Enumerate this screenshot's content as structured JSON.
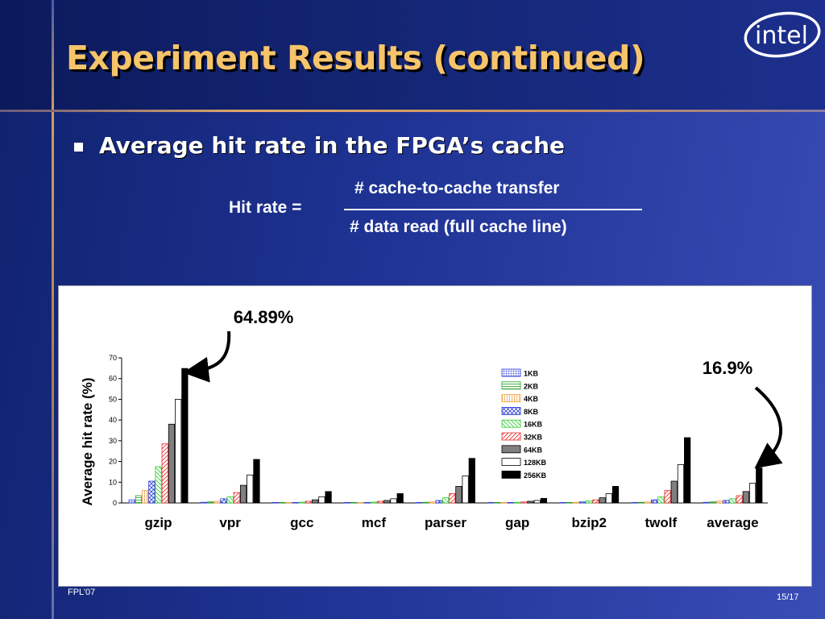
{
  "slide": {
    "title": "Experiment Results (continued)",
    "bullet": "Average hit rate in the FPGA’s cache",
    "formula": {
      "label": "Hit rate =",
      "numerator": "# cache-to-cache transfer",
      "denominator": "# data read (full cache line)"
    },
    "logo_text": "intel",
    "footer_left": "FPL’07",
    "page_number": "15/17"
  },
  "colors": {
    "title": "#f6c46a",
    "accent_line": "#e0a868",
    "background": "#1e3394"
  },
  "chart_data": {
    "type": "bar",
    "ylabel": "Average hit rate (%)",
    "xlabel": "",
    "ylim": [
      0,
      70
    ],
    "yticks": [
      0,
      10,
      20,
      30,
      40,
      50,
      60,
      70
    ],
    "categories": [
      "gzip",
      "vpr",
      "gcc",
      "mcf",
      "parser",
      "gap",
      "bzip2",
      "twolf",
      "average"
    ],
    "series": [
      {
        "name": "1KB",
        "color": "#2a3ad8",
        "pattern": "grid",
        "values": [
          1.5,
          0.3,
          0.0,
          0.0,
          0.2,
          0.0,
          0.1,
          0.2,
          0.3
        ]
      },
      {
        "name": "2KB",
        "color": "#22a022",
        "pattern": "hlines",
        "values": [
          3.5,
          0.5,
          0.0,
          0.0,
          0.3,
          0.0,
          0.2,
          0.3,
          0.5
        ]
      },
      {
        "name": "4KB",
        "color": "#f0a040",
        "pattern": "vlines",
        "values": [
          6.0,
          0.8,
          0.1,
          0.1,
          0.5,
          0.1,
          0.3,
          0.5,
          0.9
        ]
      },
      {
        "name": "8KB",
        "color": "#2a3ad8",
        "pattern": "cross",
        "values": [
          10.5,
          2.0,
          0.2,
          0.2,
          1.2,
          0.2,
          0.5,
          1.5,
          1.2
        ]
      },
      {
        "name": "16KB",
        "color": "#30d030",
        "pattern": "diag-back",
        "values": [
          17.5,
          3.0,
          0.4,
          0.4,
          2.5,
          0.3,
          1.0,
          3.0,
          2.0
        ]
      },
      {
        "name": "32KB",
        "color": "#e83030",
        "pattern": "diag",
        "values": [
          28.5,
          5.0,
          0.8,
          0.8,
          4.5,
          0.5,
          1.5,
          6.0,
          3.5
        ]
      },
      {
        "name": "64KB",
        "color": "#808080",
        "pattern": "solid",
        "values": [
          38.0,
          8.5,
          1.5,
          1.2,
          8.0,
          0.8,
          2.5,
          10.5,
          5.5
        ]
      },
      {
        "name": "128KB",
        "color": "#ffffff",
        "pattern": "outline",
        "values": [
          50.0,
          13.5,
          3.0,
          2.0,
          13.0,
          1.2,
          4.5,
          18.5,
          9.5
        ]
      },
      {
        "name": "256KB",
        "color": "#000000",
        "pattern": "solid",
        "values": [
          64.89,
          21.0,
          5.5,
          4.5,
          21.5,
          2.2,
          8.0,
          31.5,
          16.9
        ]
      }
    ],
    "annotations": [
      {
        "text": "64.89%",
        "target_category": "gzip",
        "target_series": "256KB"
      },
      {
        "text": "16.9%",
        "target_category": "average",
        "target_series": "256KB"
      }
    ],
    "legend_position": "top-right-inside",
    "grid": false
  }
}
